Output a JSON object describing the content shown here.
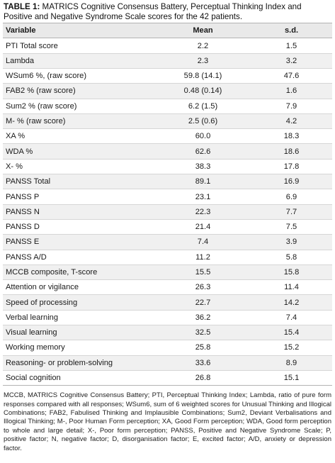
{
  "caption": {
    "label": "TABLE 1:",
    "text": "MATRICS Cognitive Consensus Battery, Perceptual Thinking Index and Positive and Negative Syndrome Scale scores for the 42 patients."
  },
  "table": {
    "headers": [
      "Variable",
      "Mean",
      "s.d."
    ],
    "rows": [
      [
        "PTI Total score",
        "2.2",
        "1.5"
      ],
      [
        "Lambda",
        "2.3",
        "3.2"
      ],
      [
        "WSum6 %, (raw score)",
        "59.8 (14.1)",
        "47.6"
      ],
      [
        "FAB2 % (raw score)",
        "0.48 (0.14)",
        "1.6"
      ],
      [
        "Sum2 % (raw score)",
        "6.2 (1.5)",
        "7.9"
      ],
      [
        "M- % (raw score)",
        "2.5 (0.6)",
        "4.2"
      ],
      [
        "XA %",
        "60.0",
        "18.3"
      ],
      [
        "WDA %",
        "62.6",
        "18.6"
      ],
      [
        "X- %",
        "38.3",
        "17.8"
      ],
      [
        "PANSS Total",
        "89.1",
        "16.9"
      ],
      [
        "PANSS P",
        "23.1",
        "6.9"
      ],
      [
        "PANSS N",
        "22.3",
        "7.7"
      ],
      [
        "PANSS D",
        "21.4",
        "7.5"
      ],
      [
        "PANSS E",
        "7.4",
        "3.9"
      ],
      [
        "PANSS A/D",
        "11.2",
        "5.8"
      ],
      [
        "MCCB composite, T-score",
        "15.5",
        "15.8"
      ],
      [
        "Attention or vigilance",
        "26.3",
        "11.4"
      ],
      [
        "Speed of processing",
        "22.7",
        "14.2"
      ],
      [
        "Verbal learning",
        "36.2",
        "7.4"
      ],
      [
        "Visual learning",
        "32.5",
        "15.4"
      ],
      [
        "Working memory",
        "25.8",
        "15.2"
      ],
      [
        "Reasoning- or problem-solving",
        "33.6",
        "8.9"
      ],
      [
        "Social cognition",
        "26.8",
        "15.1"
      ]
    ]
  },
  "footnote": "MCCB, MATRICS Cognitive Consensus Battery; PTI, Perceptual Thinking Index; Lambda, ratio of pure form responses compared with all responses; WSum6, sum of 6 weighted scores for Unusual Thinking and Illogical Combinations; FAB2, Fabulised Thinking and Implausible Combinations; Sum2, Deviant Verbalisations and Illogical Thinking; M-, Poor Human Form perception; XA, Good Form perception; WDA, Good form perception to whole and large detail; X-, Poor form perception; PANSS, Positive and Negative Syndrome Scale; P, positive factor; N, negative factor; D, disorganisation factor; E, excited factor; A/D, anxiety or depression factor."
}
